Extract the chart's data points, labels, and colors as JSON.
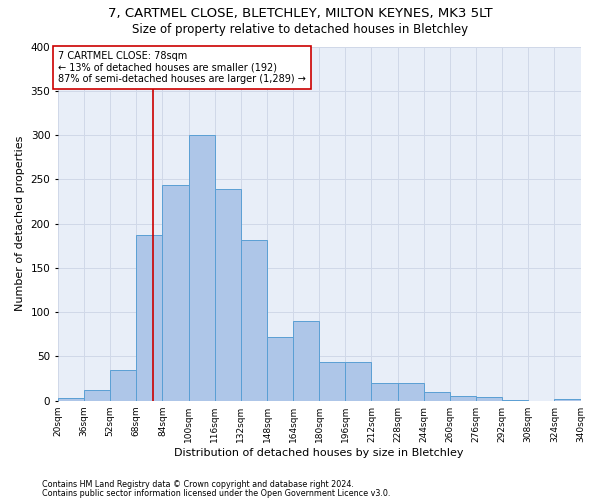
{
  "title1": "7, CARTMEL CLOSE, BLETCHLEY, MILTON KEYNES, MK3 5LT",
  "title2": "Size of property relative to detached houses in Bletchley",
  "xlabel": "Distribution of detached houses by size in Bletchley",
  "ylabel": "Number of detached properties",
  "footnote1": "Contains HM Land Registry data © Crown copyright and database right 2024.",
  "footnote2": "Contains public sector information licensed under the Open Government Licence v3.0.",
  "bin_edges": [
    20,
    36,
    52,
    68,
    84,
    100,
    116,
    132,
    148,
    164,
    180,
    196,
    212,
    228,
    244,
    260,
    276,
    292,
    308,
    324,
    340
  ],
  "bar_heights": [
    3,
    12,
    35,
    187,
    244,
    300,
    239,
    181,
    72,
    90,
    44,
    44,
    20,
    20,
    10,
    5,
    4,
    1,
    0,
    2
  ],
  "bar_color": "#aec6e8",
  "bar_edge_color": "#5a9fd4",
  "property_size": 78,
  "vline_color": "#cc0000",
  "annotation_text": "7 CARTMEL CLOSE: 78sqm\n← 13% of detached houses are smaller (192)\n87% of semi-detached houses are larger (1,289) →",
  "annotation_box_color": "#ffffff",
  "annotation_box_edge": "#cc0000",
  "ylim": [
    0,
    400
  ],
  "yticks": [
    0,
    50,
    100,
    150,
    200,
    250,
    300,
    350,
    400
  ],
  "grid_color": "#d0d8e8",
  "bg_color": "#e8eef8",
  "title1_fontsize": 9.5,
  "title2_fontsize": 8.5,
  "xlabel_fontsize": 8,
  "ylabel_fontsize": 8,
  "annot_fontsize": 7,
  "footnote_fontsize": 5.8
}
